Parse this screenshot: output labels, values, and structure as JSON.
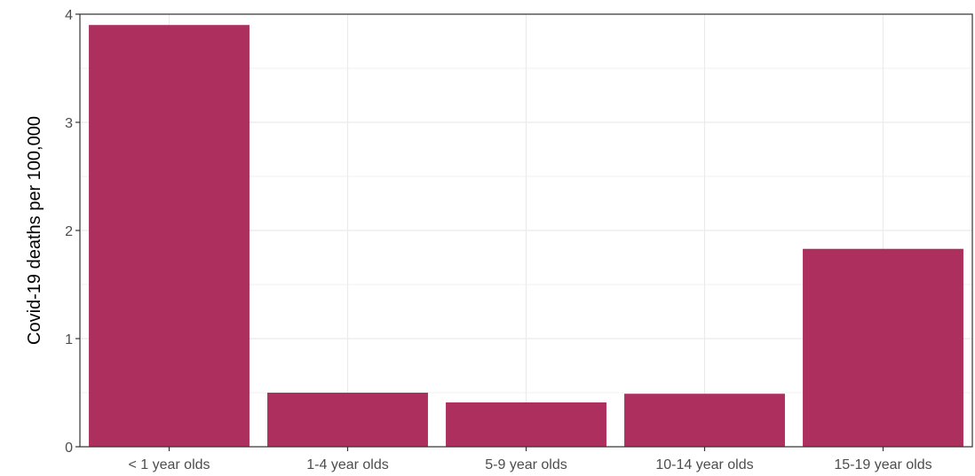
{
  "chart_data": {
    "type": "bar",
    "title": "",
    "xlabel": "",
    "ylabel": "Covid-19 deaths per 100,000",
    "categories": [
      "< 1 year olds",
      "1-4 year olds",
      "5-9 year olds",
      "10-14 year olds",
      "15-19 year olds"
    ],
    "values": [
      3.9,
      0.5,
      0.41,
      0.49,
      1.83
    ],
    "ylim": [
      0,
      4
    ],
    "yticks": [
      "0",
      "1",
      "2",
      "3",
      "4"
    ],
    "grid": true,
    "bar_color": "#ad2f5e"
  }
}
